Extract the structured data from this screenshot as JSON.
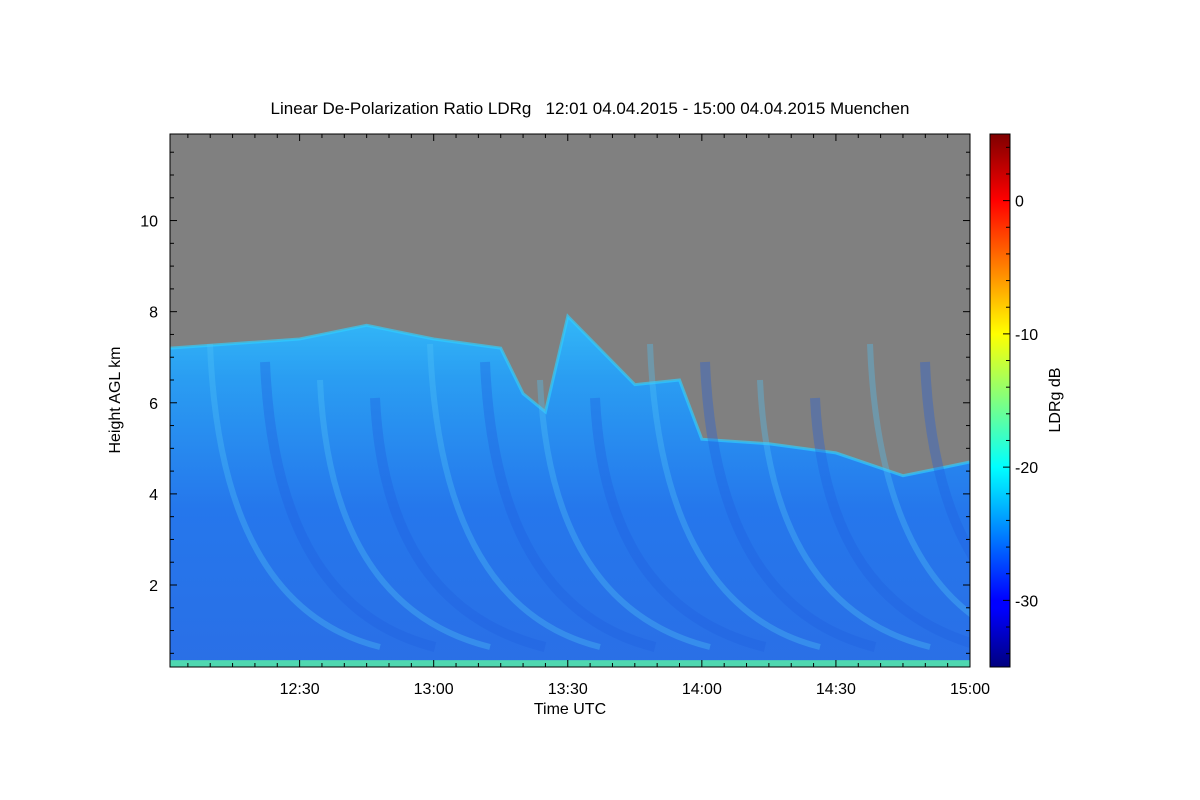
{
  "chart_data": {
    "type": "heatmap",
    "title": "Linear De-Polarization Ratio LDRg   12:01 04.04.2015 - 15:00 04.04.2015 Muenchen",
    "xlabel": "Time UTC",
    "ylabel": "Height AGL km",
    "x_range": [
      "12:01",
      "15:00"
    ],
    "y_range": [
      0.2,
      11.9
    ],
    "x_ticks": [
      "12:30",
      "13:00",
      "13:30",
      "14:00",
      "14:30",
      "15:00"
    ],
    "y_ticks": [
      2,
      4,
      6,
      8,
      10
    ],
    "colorbar": {
      "label": "LDRg dB",
      "range": [
        -35,
        5
      ],
      "ticks": [
        0,
        -10,
        -20,
        -30
      ],
      "colormap": "jet"
    },
    "no_signal_color": "#808080",
    "cloud_top_km": [
      {
        "time": "12:01",
        "height": 7.2
      },
      {
        "time": "12:30",
        "height": 7.4
      },
      {
        "time": "12:45",
        "height": 7.7
      },
      {
        "time": "13:00",
        "height": 7.4
      },
      {
        "time": "13:15",
        "height": 7.2
      },
      {
        "time": "13:20",
        "height": 6.2
      },
      {
        "time": "13:25",
        "height": 5.8
      },
      {
        "time": "13:30",
        "height": 7.9
      },
      {
        "time": "13:45",
        "height": 6.4
      },
      {
        "time": "13:55",
        "height": 6.5
      },
      {
        "time": "14:00",
        "height": 5.2
      },
      {
        "time": "14:15",
        "height": 5.1
      },
      {
        "time": "14:30",
        "height": 4.9
      },
      {
        "time": "14:45",
        "height": 4.4
      },
      {
        "time": "14:55",
        "height": 4.6
      },
      {
        "time": "15:00",
        "height": 4.7
      }
    ],
    "ground_layer_km": [
      0.2,
      0.35
    ],
    "ground_layer_ldr_db": -17,
    "cloud_ldr_db": -27,
    "cloud_top_ldr_db": -21
  }
}
